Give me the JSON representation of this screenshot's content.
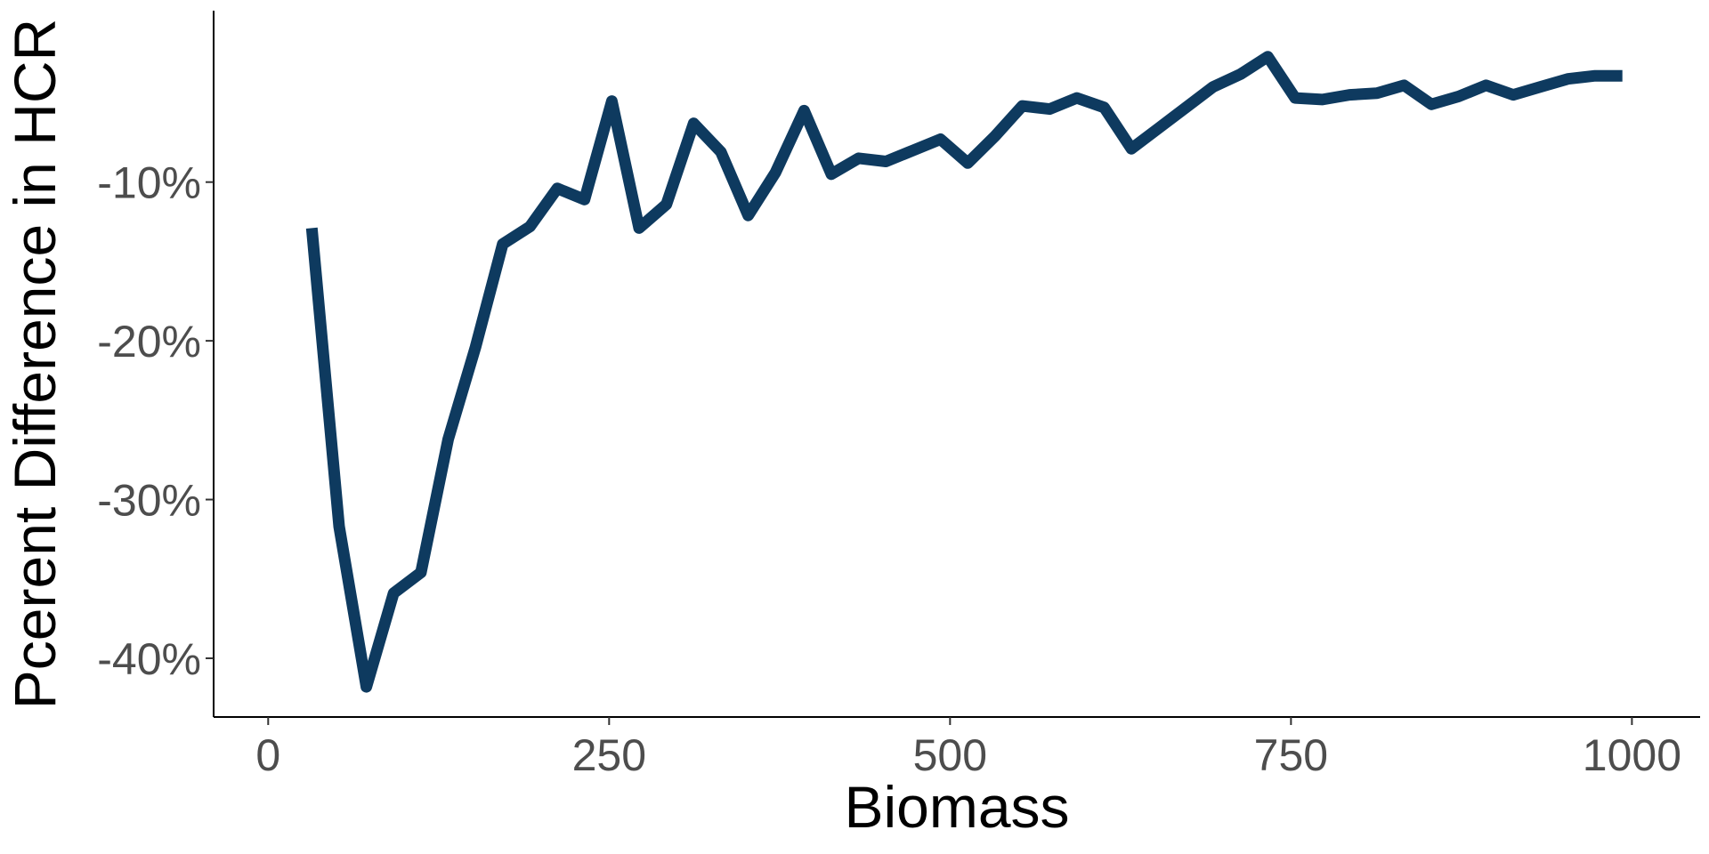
{
  "chart_data": {
    "type": "line",
    "title": "",
    "xlabel": "Biomass",
    "ylabel": "Pcerent Difference in HCR",
    "xlim": [
      -40,
      1050
    ],
    "ylim": [
      -43.7,
      0.8
    ],
    "x_ticks": [
      0,
      250,
      500,
      750,
      1000
    ],
    "x_tick_labels": [
      "0",
      "250",
      "500",
      "750",
      "1000"
    ],
    "y_ticks": [
      -40,
      -30,
      -20,
      -10
    ],
    "y_tick_labels": [
      "-40%",
      "-30%",
      "-20%",
      "-10%"
    ],
    "grid": false,
    "legend": "none",
    "colors": {
      "line": "#0e3a5f",
      "axis": "#000000",
      "tick_text": "#4d4d4d"
    },
    "series": [
      {
        "x": [
          32,
          52,
          72,
          92,
          112,
          132,
          152,
          172,
          192,
          212,
          232,
          252,
          272,
          292,
          312,
          332,
          352,
          372,
          393,
          413,
          433,
          453,
          473,
          493,
          513,
          533,
          553,
          573,
          593,
          613,
          633,
          653,
          673,
          693,
          713,
          733,
          753,
          773,
          793,
          813,
          833,
          853,
          873,
          893,
          913,
          933,
          953,
          973,
          993
        ],
        "y": [
          -12.9,
          -31.7,
          -41.8,
          -35.9,
          -34.6,
          -26.2,
          -20.4,
          -13.9,
          -12.8,
          -10.4,
          -11.1,
          -4.9,
          -12.9,
          -11.4,
          -6.3,
          -8.1,
          -12.1,
          -9.4,
          -5.5,
          -9.5,
          -8.5,
          -8.7,
          -8.0,
          -7.3,
          -8.8,
          -7.1,
          -5.2,
          -5.4,
          -4.7,
          -5.3,
          -7.9,
          -6.6,
          -5.3,
          -4.0,
          -3.2,
          -2.1,
          -4.7,
          -4.8,
          -4.5,
          -4.4,
          -3.9,
          -5.1,
          -4.6,
          -3.9,
          -4.5,
          -4.0,
          -3.5,
          -3.3,
          -3.3
        ]
      }
    ]
  }
}
